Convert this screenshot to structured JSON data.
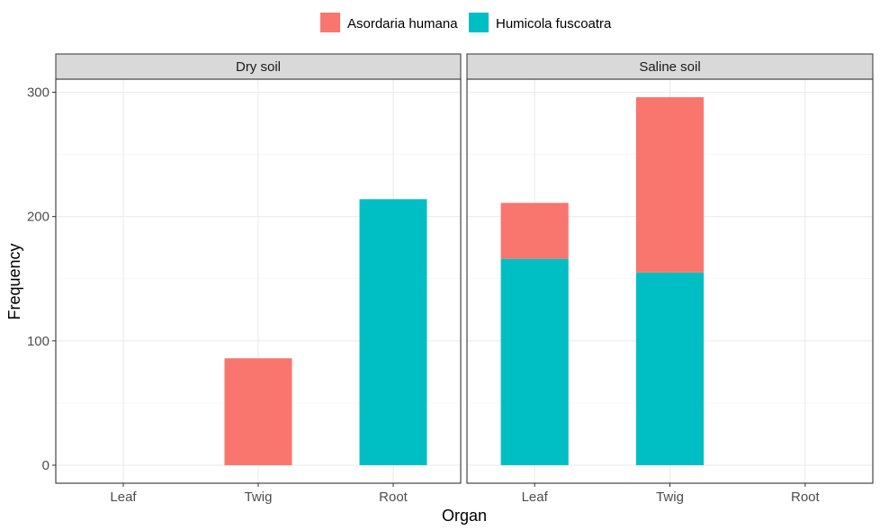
{
  "chart_data": {
    "type": "bar",
    "stacked": true,
    "xlabel": "Organ",
    "ylabel": "Frequency",
    "ylim": [
      0,
      330
    ],
    "yticks": [
      0,
      100,
      200,
      300
    ],
    "categories": [
      "Leaf",
      "Twig",
      "Root"
    ],
    "grid": true,
    "legend_position": "top",
    "series": [
      {
        "name": "Asordaria humana",
        "color": "#F8766D"
      },
      {
        "name": "Humicola fuscoatra",
        "color": "#00BFC4"
      }
    ],
    "panels": [
      {
        "label": "Dry soil",
        "values": {
          "Asordaria humana": [
            0,
            86,
            0
          ],
          "Humicola fuscoatra": [
            0,
            0,
            214
          ]
        }
      },
      {
        "label": "Saline soil",
        "values": {
          "Asordaria humana": [
            45,
            141,
            0
          ],
          "Humicola fuscoatra": [
            166,
            155,
            0
          ]
        }
      }
    ]
  }
}
